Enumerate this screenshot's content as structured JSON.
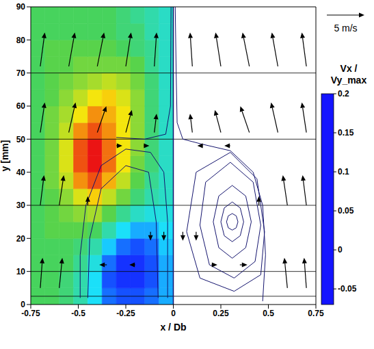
{
  "chart_data": {
    "type": "vector_field",
    "xlabel": "x / Db",
    "ylabel": "y [mm]",
    "xlim": [
      -0.75,
      0.75
    ],
    "xticks": [
      -0.75,
      -0.5,
      -0.25,
      0,
      0.25,
      0.5,
      0.75
    ],
    "ylim": [
      0,
      90
    ],
    "yticks": [
      0,
      10,
      20,
      30,
      40,
      50,
      60,
      70,
      80,
      90
    ],
    "h_lines": [
      2.5,
      10,
      30,
      50,
      70
    ],
    "v_lines": [
      0
    ],
    "colorbar": {
      "label": [
        "Vx /",
        "Vy_max"
      ],
      "range": [
        -0.07,
        0.2
      ],
      "ticks": [
        -0.05,
        0,
        0.05,
        0.1,
        0.15,
        0.2
      ]
    },
    "reference_vector": {
      "value": 5,
      "label": "5 m/s"
    },
    "cells": {
      "x_edges": [
        -0.75,
        -0.675,
        -0.6,
        -0.525,
        -0.45,
        -0.375,
        -0.3,
        -0.225,
        -0.15,
        -0.075,
        0
      ],
      "y_edges": [
        0,
        5,
        10,
        15,
        20,
        25,
        30,
        35,
        40,
        45,
        50,
        55,
        60,
        65,
        70,
        75,
        80,
        85,
        90
      ],
      "values": [
        [
          0.06,
          0.06,
          0.05,
          0.03,
          0.0,
          -0.04,
          -0.05,
          -0.05,
          -0.04,
          -0.02
        ],
        [
          0.06,
          0.06,
          0.05,
          0.03,
          0.0,
          -0.05,
          -0.06,
          -0.06,
          -0.05,
          -0.02
        ],
        [
          0.06,
          0.06,
          0.06,
          0.04,
          0.01,
          -0.04,
          -0.06,
          -0.06,
          -0.05,
          -0.02
        ],
        [
          0.06,
          0.06,
          0.06,
          0.05,
          0.03,
          -0.01,
          -0.04,
          -0.05,
          -0.04,
          -0.01
        ],
        [
          0.06,
          0.07,
          0.07,
          0.07,
          0.06,
          0.03,
          0.0,
          -0.02,
          -0.02,
          0.0
        ],
        [
          0.06,
          0.07,
          0.08,
          0.09,
          0.1,
          0.07,
          0.04,
          0.02,
          0.01,
          0.01
        ],
        [
          0.06,
          0.07,
          0.09,
          0.12,
          0.14,
          0.11,
          0.08,
          0.05,
          0.03,
          0.02
        ],
        [
          0.06,
          0.08,
          0.11,
          0.16,
          0.18,
          0.15,
          0.11,
          0.07,
          0.04,
          0.02
        ],
        [
          0.06,
          0.08,
          0.12,
          0.18,
          0.2,
          0.17,
          0.13,
          0.08,
          0.05,
          0.02
        ],
        [
          0.06,
          0.08,
          0.12,
          0.18,
          0.2,
          0.17,
          0.13,
          0.09,
          0.05,
          0.02
        ],
        [
          0.06,
          0.08,
          0.11,
          0.16,
          0.18,
          0.16,
          0.13,
          0.09,
          0.05,
          0.02
        ],
        [
          0.06,
          0.08,
          0.1,
          0.13,
          0.16,
          0.15,
          0.13,
          0.09,
          0.05,
          0.02
        ],
        [
          0.06,
          0.07,
          0.09,
          0.11,
          0.13,
          0.14,
          0.12,
          0.09,
          0.05,
          0.02
        ],
        [
          0.06,
          0.07,
          0.08,
          0.09,
          0.1,
          0.11,
          0.1,
          0.08,
          0.05,
          0.02
        ],
        [
          0.06,
          0.07,
          0.07,
          0.08,
          0.08,
          0.08,
          0.08,
          0.07,
          0.04,
          0.02
        ],
        [
          0.06,
          0.07,
          0.07,
          0.07,
          0.07,
          0.07,
          0.06,
          0.05,
          0.04,
          0.02
        ],
        [
          0.06,
          0.06,
          0.06,
          0.06,
          0.06,
          0.06,
          0.05,
          0.05,
          0.03,
          0.02
        ],
        [
          0.06,
          0.06,
          0.06,
          0.06,
          0.06,
          0.06,
          0.05,
          0.04,
          0.03,
          0.02
        ]
      ]
    },
    "vectors": {
      "color": "#000000",
      "x": [
        -0.7,
        -0.55,
        -0.4,
        -0.25,
        -0.1,
        0.1,
        0.25,
        0.4,
        0.55,
        0.7,
        -0.7,
        -0.55,
        -0.4,
        -0.25,
        -0.1,
        0.1,
        0.25,
        0.4,
        0.55,
        0.7,
        -0.7,
        -0.6,
        0.6,
        0.7,
        -0.7,
        -0.6,
        0.6,
        0.7,
        -0.3,
        -0.15,
        0.15,
        0.3,
        -0.12,
        -0.05,
        0.05,
        0.12,
        -0.35,
        -0.2,
        0.2,
        0.35,
        -0.45,
        0.45
      ],
      "y": [
        72,
        72,
        72,
        72,
        72,
        72,
        72,
        72,
        72,
        72,
        52,
        52,
        52,
        52,
        52,
        52,
        52,
        52,
        52,
        52,
        30,
        30,
        30,
        30,
        5,
        5,
        5,
        5,
        48,
        48,
        48,
        48,
        22,
        22,
        22,
        22,
        12,
        12,
        12,
        12,
        30,
        30
      ],
      "u": [
        0.6,
        0.8,
        0.9,
        0.7,
        0.3,
        -0.3,
        -0.7,
        -0.9,
        -0.8,
        -0.6,
        0.6,
        0.9,
        1.2,
        0.8,
        0.3,
        -0.3,
        -0.8,
        -1.2,
        -0.9,
        -0.6,
        0.5,
        0.6,
        -0.6,
        -0.5,
        0.3,
        0.4,
        -0.4,
        -0.3,
        0.8,
        0.6,
        -0.6,
        -0.8,
        0,
        0,
        0,
        0,
        -1,
        -0.8,
        0.8,
        1,
        0,
        0
      ],
      "v": [
        4.5,
        4.5,
        4.5,
        4.5,
        4.5,
        4.5,
        4.5,
        4.5,
        4.5,
        4.5,
        4,
        4,
        3.5,
        3,
        2.5,
        2.5,
        3,
        3.5,
        4,
        4,
        4,
        4,
        4,
        4,
        4,
        4,
        4,
        4,
        0,
        0,
        0,
        0,
        -1.2,
        -1.2,
        -1.2,
        -1.2,
        0,
        0,
        0,
        0,
        1.2,
        1.2
      ]
    },
    "streamlines": {
      "color": "#14146e",
      "lines": [
        {
          "x": [
            0.34,
            0.331,
            0.31,
            0.289,
            0.28,
            0.289,
            0.31,
            0.331,
            0.34
          ],
          "y": [
            25,
            26.8,
            27.5,
            26.8,
            25,
            23.2,
            22.5,
            23.2,
            25
          ]
        },
        {
          "x": [
            0.37,
            0.352,
            0.31,
            0.268,
            0.25,
            0.268,
            0.31,
            0.352,
            0.37
          ],
          "y": [
            25,
            29.2,
            31,
            29.2,
            25,
            20.8,
            19,
            20.8,
            25
          ]
        },
        {
          "x": [
            0.41,
            0.381,
            0.31,
            0.239,
            0.21,
            0.239,
            0.31,
            0.381,
            0.41
          ],
          "y": [
            25,
            32.8,
            36,
            32.8,
            25,
            17.2,
            14,
            17.2,
            25
          ]
        },
        {
          "x": [
            0.46,
            0.42,
            0.3,
            0.17,
            0.14,
            0.19,
            0.32,
            0.43,
            0.46
          ],
          "y": [
            24,
            37,
            43,
            37,
            24,
            12,
            8,
            13,
            24
          ]
        },
        {
          "x": [
            0.48,
            0.44,
            0.3,
            0.12,
            0.07,
            0.14,
            0.32,
            0.46,
            0.48
          ],
          "y": [
            22,
            38,
            46,
            40,
            22,
            8,
            4,
            9,
            22
          ]
        },
        {
          "x": [
            0.47,
            0.485,
            0.47,
            0.42,
            0.3,
            0.15,
            0.05,
            0.02,
            0.015,
            0.01
          ],
          "y": [
            1,
            15,
            30,
            40,
            46.5,
            48.5,
            50,
            55,
            70,
            90
          ]
        },
        {
          "x": [
            -0.49,
            -0.49,
            -0.46,
            -0.38,
            -0.25,
            -0.12,
            -0.05,
            -0.03,
            -0.03
          ],
          "y": [
            2,
            15,
            30,
            42,
            47,
            46,
            40,
            25,
            2
          ]
        },
        {
          "x": [
            -0.45,
            -0.44,
            -0.38,
            -0.25,
            -0.13,
            -0.09,
            -0.08
          ],
          "y": [
            2,
            20,
            35,
            42,
            40,
            25,
            2
          ]
        },
        {
          "x": [
            -0.012,
            -0.015,
            -0.04,
            -0.15,
            -0.3
          ],
          "y": [
            90,
            60,
            51.5,
            50,
            50.5
          ]
        }
      ]
    }
  }
}
